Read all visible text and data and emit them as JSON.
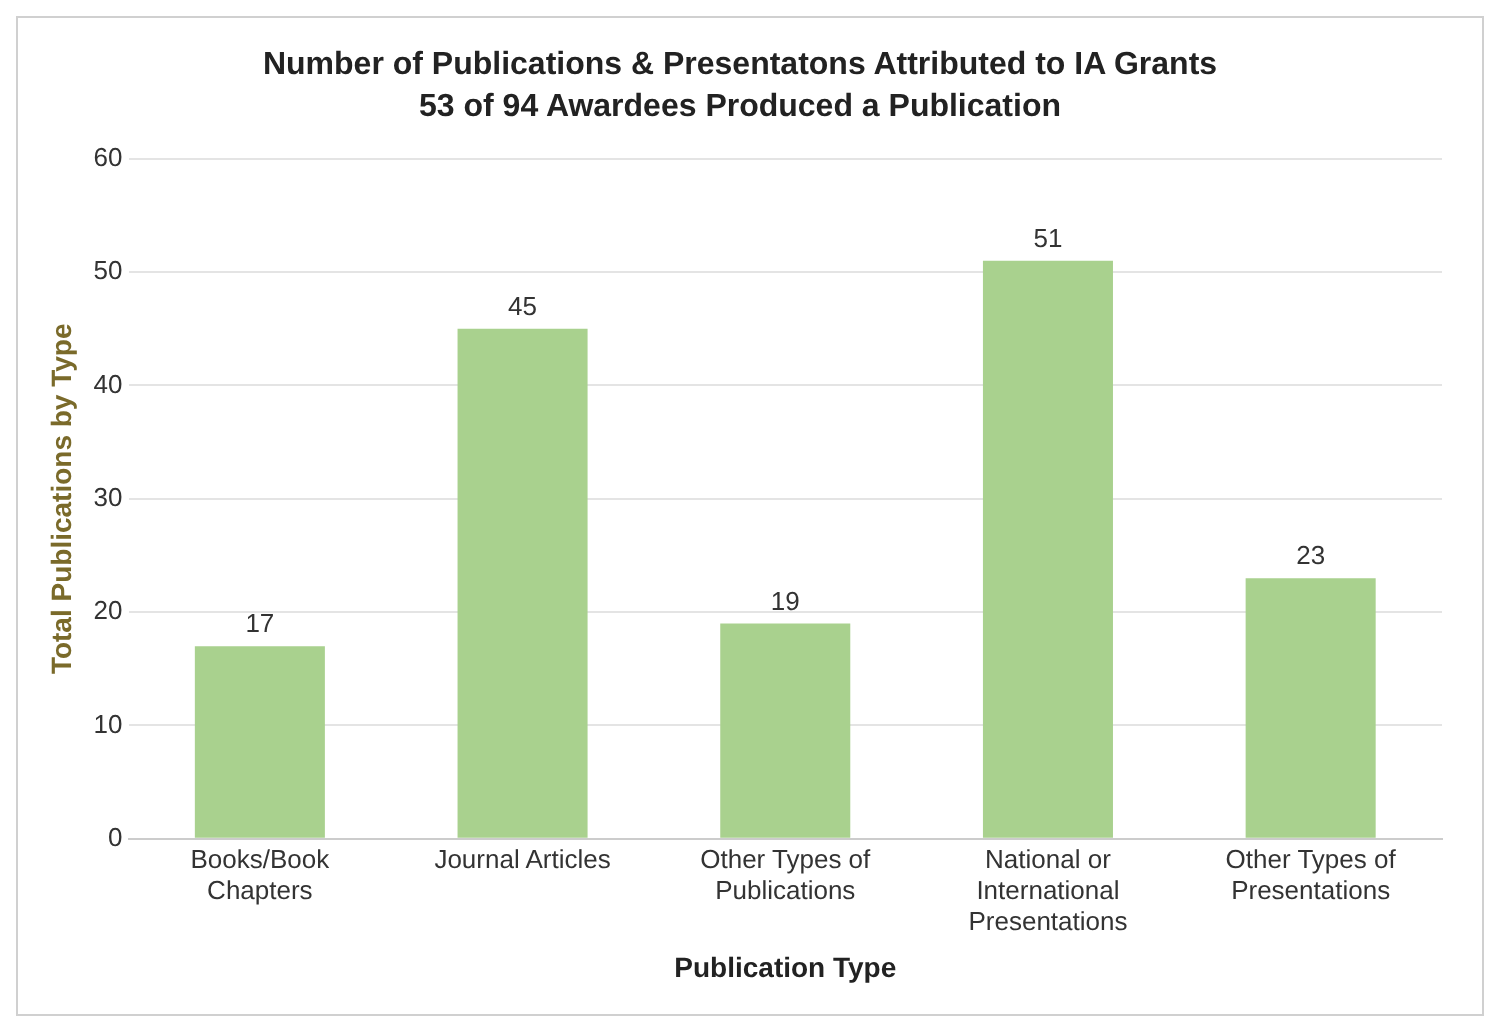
{
  "chart_data": {
    "type": "bar",
    "title": "Number of Publications & Presentatons Attributed to IA Grants",
    "subtitle": "53 of 94 Awardees Produced a Publication",
    "xlabel": "Publication Type",
    "ylabel": "Total Publications by Type",
    "categories": [
      "Books/Book Chapters",
      "Journal Articles",
      "Other Types of Publications",
      "National or International Presentations",
      "Other Types of Presentations"
    ],
    "values": [
      17,
      45,
      19,
      51,
      23
    ],
    "color": "#a9d18e",
    "ylim": [
      0,
      60
    ],
    "yticks": [
      0,
      10,
      20,
      30,
      40,
      50,
      60
    ],
    "grid": "y",
    "data_labels": true
  }
}
